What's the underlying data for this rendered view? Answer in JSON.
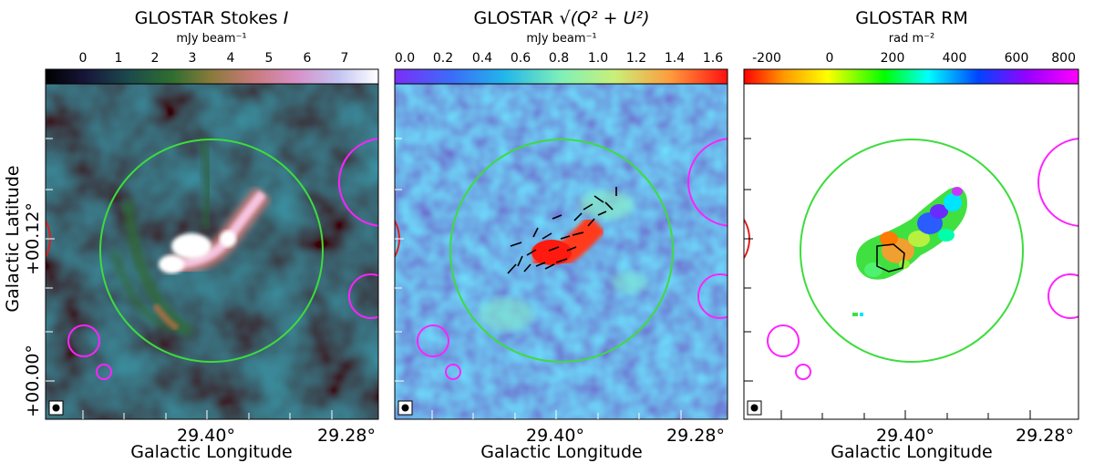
{
  "colors": {
    "green_circle": "#3ddc3d",
    "magenta_circle": "#ff22ff",
    "red_arc": "#e02020"
  },
  "panels": [
    {
      "title": "GLOSTAR Stokes",
      "title_italic": "I",
      "colorbar_label": "mJy beam⁻¹",
      "colorbar_ticks": [
        "0",
        "1",
        "2",
        "3",
        "4",
        "5",
        "6",
        "7"
      ],
      "colormap": "cubehelix"
    },
    {
      "title": "GLOSTAR",
      "title_math": "√(Q² + U²)",
      "colorbar_label": "mJy beam⁻¹",
      "colorbar_ticks": [
        "0.0",
        "0.2",
        "0.4",
        "0.6",
        "0.8",
        "1.0",
        "1.2",
        "1.4",
        "1.6"
      ],
      "colormap": "rainbow"
    },
    {
      "title": "GLOSTAR RM",
      "colorbar_label": "rad m⁻²",
      "colorbar_ticks": [
        "-200",
        "0",
        "200",
        "400",
        "600",
        "800"
      ],
      "colormap": "hsv"
    }
  ],
  "axes": {
    "xlabel": "Galactic Longitude",
    "ylabel": "Galactic Latitude",
    "xticks": [
      "29.40°",
      "29.28°"
    ],
    "yticks": [
      "+00.12°",
      "+00.00°"
    ]
  }
}
